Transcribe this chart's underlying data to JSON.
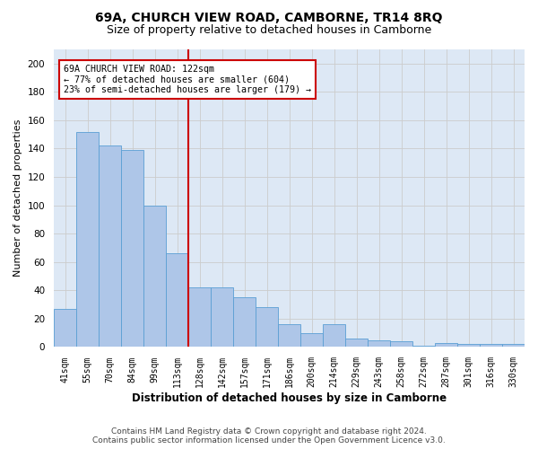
{
  "title": "69A, CHURCH VIEW ROAD, CAMBORNE, TR14 8RQ",
  "subtitle": "Size of property relative to detached houses in Camborne",
  "xlabel": "Distribution of detached houses by size in Camborne",
  "ylabel": "Number of detached properties",
  "categories": [
    "41sqm",
    "55sqm",
    "70sqm",
    "84sqm",
    "99sqm",
    "113sqm",
    "128sqm",
    "142sqm",
    "157sqm",
    "171sqm",
    "186sqm",
    "200sqm",
    "214sqm",
    "229sqm",
    "243sqm",
    "258sqm",
    "272sqm",
    "287sqm",
    "301sqm",
    "316sqm",
    "330sqm"
  ],
  "values": [
    27,
    152,
    142,
    139,
    100,
    66,
    42,
    42,
    35,
    28,
    16,
    10,
    16,
    6,
    5,
    4,
    1,
    3,
    2,
    2,
    2
  ],
  "bar_color": "#aec6e8",
  "bar_edge_color": "#5a9fd4",
  "red_line_index": 6,
  "annotation_line1": "69A CHURCH VIEW ROAD: 122sqm",
  "annotation_line2": "← 77% of detached houses are smaller (604)",
  "annotation_line3": "23% of semi-detached houses are larger (179) →",
  "annotation_box_color": "#ffffff",
  "annotation_box_edge_color": "#cc0000",
  "red_line_color": "#cc0000",
  "ylim": [
    0,
    210
  ],
  "yticks": [
    0,
    20,
    40,
    60,
    80,
    100,
    120,
    140,
    160,
    180,
    200
  ],
  "grid_color": "#cccccc",
  "fig_bg_color": "#ffffff",
  "plot_bg_color": "#dde8f5",
  "footer_line1": "Contains HM Land Registry data © Crown copyright and database right 2024.",
  "footer_line2": "Contains public sector information licensed under the Open Government Licence v3.0.",
  "title_fontsize": 10,
  "subtitle_fontsize": 9,
  "footer_fontsize": 6.5
}
